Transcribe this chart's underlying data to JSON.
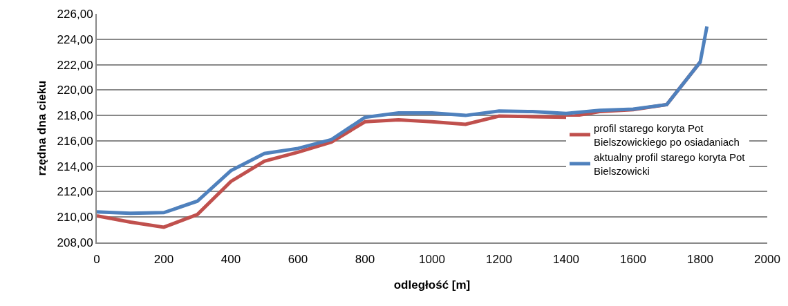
{
  "chart_data": {
    "type": "line",
    "xlabel": "odległość [m]",
    "ylabel": "rzędna dna cieku",
    "x": [
      0,
      100,
      200,
      300,
      400,
      500,
      600,
      700,
      800,
      900,
      1000,
      1100,
      1200,
      1300,
      1400,
      1500,
      1600,
      1700,
      1800,
      1820
    ],
    "series": [
      {
        "name": "profil starego koryta Pot Bielszowickiego po osiadaniach",
        "color": "#c0504d",
        "values": [
          210.1,
          209.6,
          209.2,
          210.2,
          212.8,
          214.4,
          215.1,
          215.9,
          217.5,
          217.65,
          217.5,
          217.3,
          217.95,
          217.9,
          217.85,
          218.3,
          218.45,
          218.85,
          222.2,
          null
        ]
      },
      {
        "name": "aktualny profil starego koryta Pot Bielszowicki",
        "color": "#4f81bd",
        "values": [
          210.4,
          210.3,
          210.35,
          211.25,
          213.65,
          215.0,
          215.4,
          216.1,
          217.85,
          218.2,
          218.2,
          218.0,
          218.35,
          218.3,
          218.15,
          218.4,
          218.5,
          218.85,
          222.2,
          225
        ]
      }
    ],
    "xlim": [
      0,
      2000
    ],
    "xticks": [
      0,
      200,
      400,
      600,
      800,
      1000,
      1200,
      1400,
      1600,
      1800,
      2000
    ],
    "ylim": [
      208,
      226
    ],
    "yticks": [
      {
        "value": 208,
        "label": "208,00"
      },
      {
        "value": 210,
        "label": "210,00"
      },
      {
        "value": 212,
        "label": "212,00"
      },
      {
        "value": 214,
        "label": "214,00"
      },
      {
        "value": 216,
        "label": "216,00"
      },
      {
        "value": 218,
        "label": "218,00"
      },
      {
        "value": 220,
        "label": "220,00"
      },
      {
        "value": 222,
        "label": "222,00"
      },
      {
        "value": 224,
        "label": "224,00"
      },
      {
        "value": 226,
        "label": "226,00"
      }
    ],
    "grid": "y",
    "legend": "right",
    "marker": "none",
    "line_style": "solid"
  }
}
